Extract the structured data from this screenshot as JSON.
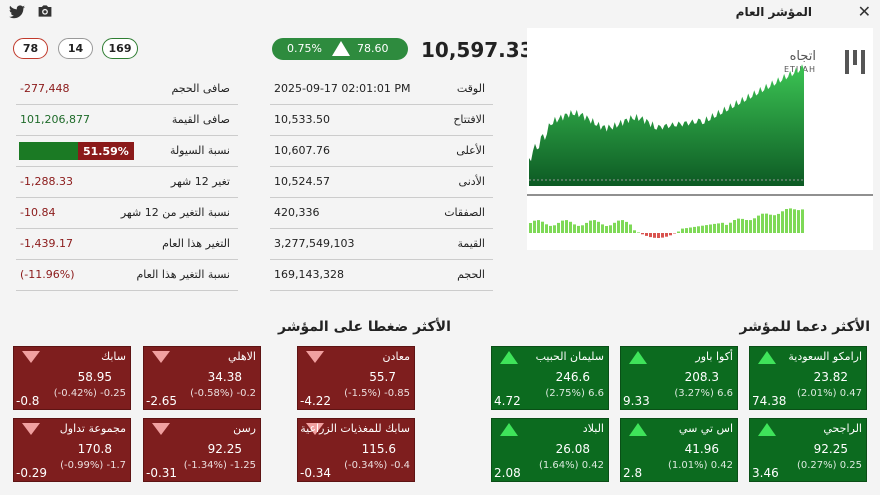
{
  "header": {
    "title": "المؤشر العام"
  },
  "counts": {
    "down": "78",
    "unchanged": "14",
    "up": "169"
  },
  "index": {
    "value": "10,597.33",
    "change_points": "78.60",
    "change_pct": "0.75%"
  },
  "details": [
    {
      "label": "الوقت",
      "value": "2025-09-17 02:01:01 PM"
    },
    {
      "label": "الافتتاح",
      "value": "10,533.50"
    },
    {
      "label": "الأعلى",
      "value": "10,607.76"
    },
    {
      "label": "الأدنى",
      "value": "10,524.57"
    },
    {
      "label": "الصفقات",
      "value": "420,336"
    },
    {
      "label": "القيمة",
      "value": "3,277,549,103"
    },
    {
      "label": "الحجم",
      "value": "169,143,328"
    }
  ],
  "stats": [
    {
      "label": "صافى الحجم",
      "value": "-277,448"
    },
    {
      "label": "صافى القيمة",
      "value": "101,206,877"
    },
    {
      "label": "نسبة السيولة",
      "value": "51.59%",
      "bar_fraction": 0.5159
    },
    {
      "label": "تغير 12 شهر",
      "value": "-1,288.33"
    },
    {
      "label": "نسبة التغير من 12 شهر",
      "value": "-10.84"
    },
    {
      "label": "التغير هذا العام",
      "value": "-1,439.17"
    },
    {
      "label": "نسبة التغير هذا العام",
      "value": "(-11.96%)"
    }
  ],
  "colors": {
    "positive": "#1f6b2a",
    "negative": "#8b1a1a",
    "accent": "#2e8b3e"
  },
  "chart": {
    "brand": "اتجاه",
    "brand_latin": "ETIJAH"
  },
  "sections": {
    "top_pressure": "الأكثر ضغطا على المؤشر",
    "top_support": "الأكثر دعما للمؤشر"
  },
  "losers": [
    {
      "name": "معادن",
      "price": "55.7",
      "sub": "(-1.5%) -0.85",
      "points": "-4.22"
    },
    {
      "name": "الاهلي",
      "price": "34.38",
      "sub": "(-0.58%) -0.2",
      "points": "-2.65"
    },
    {
      "name": "سابك",
      "price": "58.95",
      "sub": "(-0.42%) -0.25",
      "points": "-0.8"
    },
    {
      "name": "سابك للمغذيات الزراعية",
      "price": "115.6",
      "sub": "(-0.34%) -0.4",
      "points": "-0.34"
    },
    {
      "name": "رسن",
      "price": "92.25",
      "sub": "(-1.34%) -1.25",
      "points": "-0.31"
    },
    {
      "name": "مجموعة تداول",
      "price": "170.8",
      "sub": "(-0.99%) -1.7",
      "points": "-0.29"
    }
  ],
  "gainers": [
    {
      "name": "ارامكو السعودية",
      "price": "23.82",
      "sub": "(2.01%) 0.47",
      "points": "74.38"
    },
    {
      "name": "أكوا باور",
      "price": "208.3",
      "sub": "(3.27%) 6.6",
      "points": "9.33"
    },
    {
      "name": "سليمان الحبيب",
      "price": "246.6",
      "sub": "(2.75%) 6.6",
      "points": "4.72"
    },
    {
      "name": "الراجحي",
      "price": "92.25",
      "sub": "(0.27%) 0.25",
      "points": "3.46"
    },
    {
      "name": "اس تي سي",
      "price": "41.96",
      "sub": "(1.01%) 0.42",
      "points": "2.8"
    },
    {
      "name": "البلاد",
      "price": "26.08",
      "sub": "(1.64%) 0.42",
      "points": "2.08"
    }
  ]
}
